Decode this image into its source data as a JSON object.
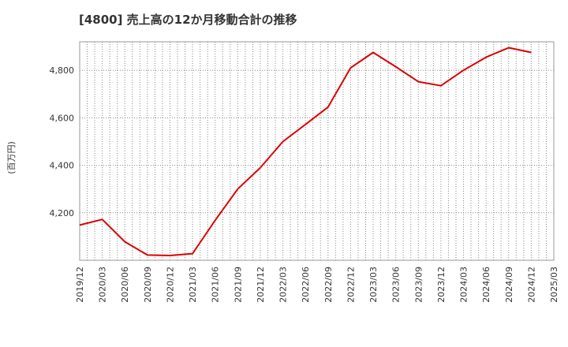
{
  "chart_data": {
    "type": "line",
    "title": "[4800]  売上高の12か月移動合計の推移",
    "xlabel": "",
    "ylabel": "(百万円)",
    "ylim": [
      4000,
      4920
    ],
    "yticks": [
      4200,
      4400,
      4600,
      4800
    ],
    "ytick_labels": [
      "4,200",
      "4,400",
      "4,600",
      "4,800"
    ],
    "x_tick_labels": [
      "2019/12",
      "2020/03",
      "2020/06",
      "2020/09",
      "2020/12",
      "2021/03",
      "2021/06",
      "2021/09",
      "2021/12",
      "2022/03",
      "2022/06",
      "2022/09",
      "2022/12",
      "2023/03",
      "2023/06",
      "2023/09",
      "2023/12",
      "2024/03",
      "2024/06",
      "2024/09",
      "2024/12",
      "2025/03"
    ],
    "grid": true,
    "line_color": "#dd0000",
    "series": [
      {
        "name": "売上高",
        "x": [
          "2019/12",
          "2020/03",
          "2020/06",
          "2020/09",
          "2020/12",
          "2021/03",
          "2021/06",
          "2021/09",
          "2021/12",
          "2022/03",
          "2022/06",
          "2022/09",
          "2022/12",
          "2023/03",
          "2023/06",
          "2023/09",
          "2023/12",
          "2024/03",
          "2024/06",
          "2024/09",
          "2024/12"
        ],
        "values": [
          4148,
          4172,
          4078,
          4022,
          4020,
          4028,
          4168,
          4300,
          4390,
          4500,
          4572,
          4645,
          4810,
          4875,
          4815,
          4752,
          4735,
          4800,
          4855,
          4895,
          4875
        ]
      }
    ]
  }
}
